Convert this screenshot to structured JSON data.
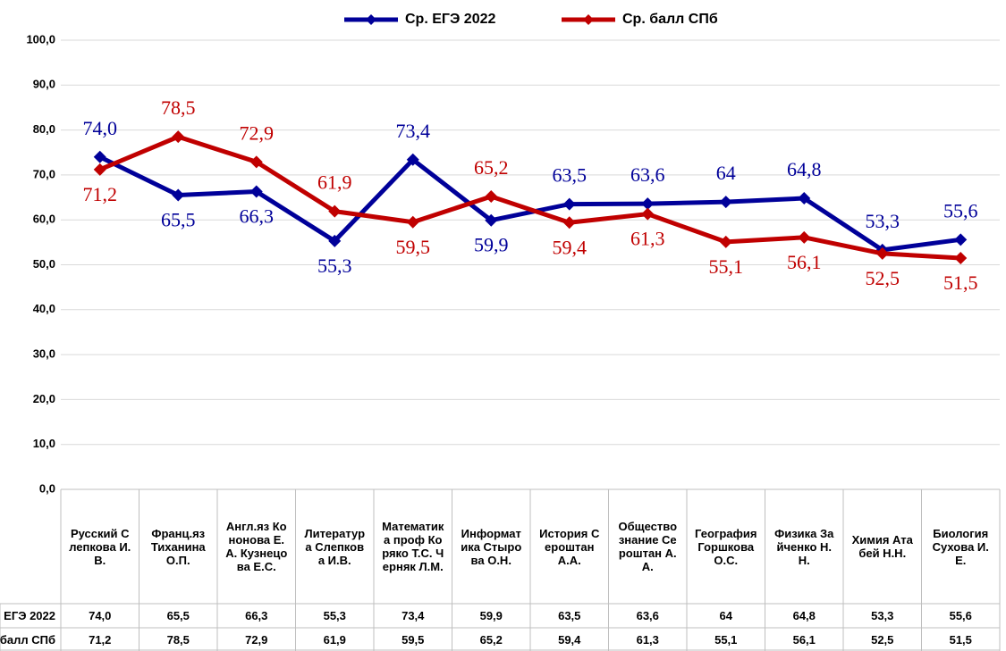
{
  "chart_data": {
    "type": "line",
    "categories": [
      "Русский Слепкова И.В.",
      "Франц.яз Тиханина О.П.",
      "Англ.яз Кононова Е.А. Кузнецова Е.С.",
      "Литература Слепкова И.В.",
      "Математика проф Коряко Т.С. Черняк Л.М.",
      "Информатика Стырова О.Н.",
      "История Сероштан А.А.",
      "Обществознание Сероштан А.А.",
      "География Горшкова О.С.",
      "Физика Зайченко Н.Н.",
      "Химия Атабей Н.Н.",
      "Биология Сухова И.Е."
    ],
    "series": [
      {
        "name": "Ср. ЕГЭ 2022",
        "color": "#000099",
        "values": [
          74.0,
          65.5,
          66.3,
          55.3,
          73.4,
          59.9,
          63.5,
          63.6,
          64,
          64.8,
          53.3,
          55.6
        ],
        "value_labels": [
          "74,0",
          "65,5",
          "66,3",
          "55,3",
          "73,4",
          "59,9",
          "63,5",
          "63,6",
          "64",
          "64,8",
          "53,3",
          "55,6"
        ]
      },
      {
        "name": "Ср. балл СПб",
        "color": "#c00000",
        "values": [
          71.2,
          78.5,
          72.9,
          61.9,
          59.5,
          65.2,
          59.4,
          61.3,
          55.1,
          56.1,
          52.5,
          51.5
        ],
        "value_labels": [
          "71,2",
          "78,5",
          "72,9",
          "61,9",
          "59,5",
          "65,2",
          "59,4",
          "61,3",
          "55,1",
          "56,1",
          "52,5",
          "51,5"
        ]
      }
    ],
    "ylim": [
      0,
      100
    ],
    "yticks": [
      {
        "value": 0,
        "label": "0,0"
      },
      {
        "value": 10,
        "label": "10,0"
      },
      {
        "value": 20,
        "label": "20,0"
      },
      {
        "value": 30,
        "label": "30,0"
      },
      {
        "value": 40,
        "label": "40,0"
      },
      {
        "value": 50,
        "label": "50,0"
      },
      {
        "value": 60,
        "label": "60,0"
      },
      {
        "value": 70,
        "label": "70,0"
      },
      {
        "value": 80,
        "label": "80,0"
      },
      {
        "value": 90,
        "label": "90,0"
      },
      {
        "value": 100,
        "label": "100,0"
      }
    ],
    "grid": true,
    "legend": "top"
  }
}
